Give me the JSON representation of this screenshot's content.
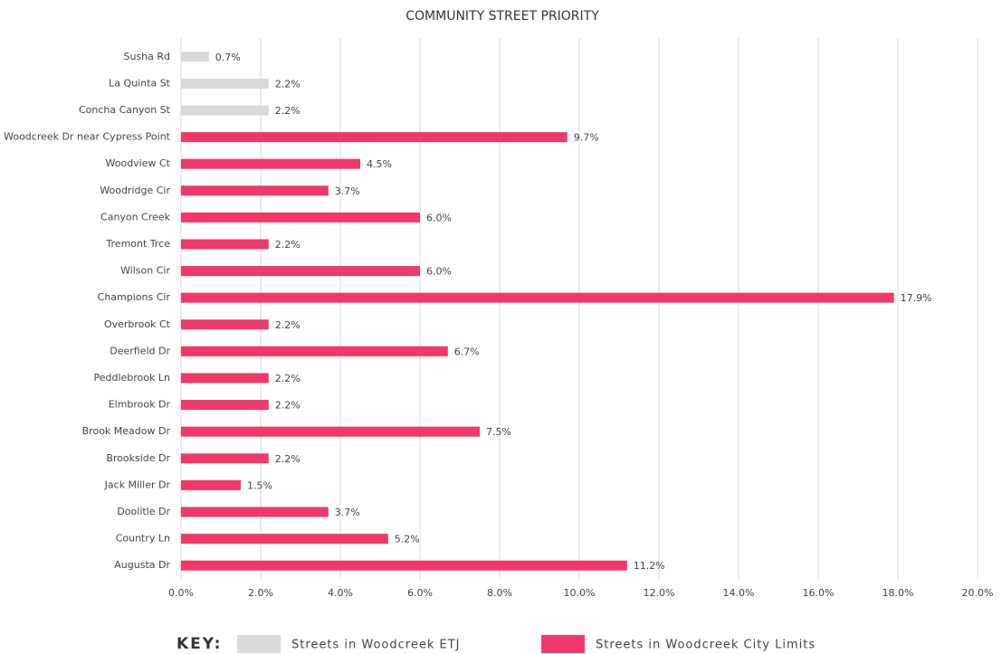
{
  "chart_data": {
    "type": "bar",
    "orientation": "horizontal",
    "title": "COMMUNITY STREET PRIORITY",
    "categories": [
      "Susha Rd",
      "La Quinta St",
      "Concha Canyon St",
      "Woodcreek Dr near Cypress Point",
      "Woodview Ct",
      "Woodridge Cir",
      "Canyon Creek",
      "Tremont Trce",
      "Wilson Cir",
      "Champions Cir",
      "Overbrook Ct",
      "Deerfield Dr",
      "Peddlebrook Ln",
      "Elmbrook Dr",
      "Brook Meadow Dr",
      "Brookside Dr",
      "Jack Miller Dr",
      "Doolitle Dr",
      "Country Ln",
      "Augusta Dr"
    ],
    "series": [
      {
        "name": "Streets in Woodcreek ETJ",
        "color": "#d9d9d9",
        "values": [
          0.7,
          2.2,
          2.2,
          null,
          null,
          null,
          null,
          null,
          null,
          null,
          null,
          null,
          null,
          null,
          null,
          null,
          null,
          null,
          null,
          null
        ],
        "value_labels": [
          "0.7%",
          "2.2%",
          "2.2%",
          null,
          null,
          null,
          null,
          null,
          null,
          null,
          null,
          null,
          null,
          null,
          null,
          null,
          null,
          null,
          null,
          null
        ]
      },
      {
        "name": "Streets in Woodcreek City Limits",
        "color": "#f0386b",
        "values": [
          null,
          null,
          null,
          9.7,
          4.5,
          3.7,
          6.0,
          2.2,
          6.0,
          17.9,
          2.2,
          6.7,
          2.2,
          2.2,
          7.5,
          2.2,
          1.5,
          3.7,
          5.2,
          11.2
        ],
        "value_labels": [
          null,
          null,
          null,
          "9.7%",
          "4.5%",
          "3.7%",
          "6.0%",
          "2.2%",
          "6.0%",
          "17.9%",
          "2.2%",
          "6.7%",
          "2.2%",
          "2.2%",
          "7.5%",
          "2.2%",
          "1.5%",
          "3.7%",
          "5.2%",
          "11.2%"
        ]
      }
    ],
    "xlim": [
      0,
      20
    ],
    "xticks": [
      {
        "value": 0,
        "label": "0.0%"
      },
      {
        "value": 2,
        "label": "2.0%"
      },
      {
        "value": 4,
        "label": "4.0%"
      },
      {
        "value": 6,
        "label": "6.0%"
      },
      {
        "value": 8,
        "label": "8.0%"
      },
      {
        "value": 10,
        "label": "10.0%"
      },
      {
        "value": 12,
        "label": "12.0%"
      },
      {
        "value": 14,
        "label": "14.0%"
      },
      {
        "value": 16,
        "label": "16.0%"
      },
      {
        "value": 18,
        "label": "18.0%"
      },
      {
        "value": 20,
        "label": "20.0%"
      }
    ],
    "grid": true,
    "legend_title": "KEY:",
    "legend_position": "bottom"
  }
}
